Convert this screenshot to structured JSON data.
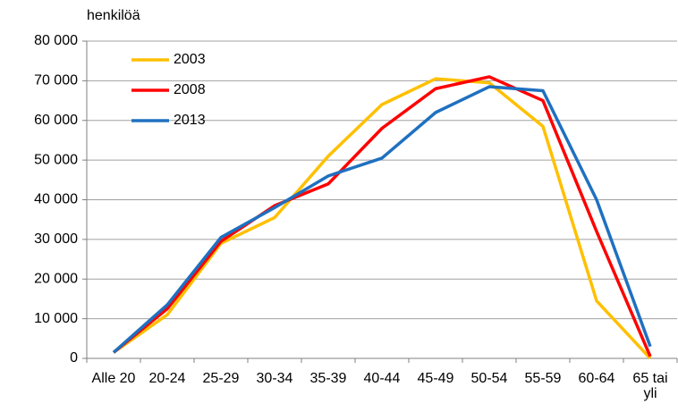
{
  "chart_data": {
    "type": "line",
    "y_axis_label": "henkilöä",
    "categories": [
      "Alle 20",
      "20-24",
      "25-29",
      "30-34",
      "35-39",
      "40-44",
      "45-49",
      "50-54",
      "55-59",
      "60-64",
      "65 tai yli"
    ],
    "series": [
      {
        "name": "2003",
        "color": "#ffc000",
        "values": [
          1500,
          11000,
          29000,
          35500,
          51000,
          64000,
          70500,
          69500,
          58500,
          14500,
          0
        ]
      },
      {
        "name": "2008",
        "color": "#ff0000",
        "values": [
          1500,
          12500,
          29500,
          38500,
          44000,
          58000,
          68000,
          71000,
          65000,
          32000,
          500
        ]
      },
      {
        "name": "2013",
        "color": "#1f70c0",
        "values": [
          1500,
          13500,
          30500,
          38000,
          46000,
          50500,
          62000,
          68500,
          67500,
          40000,
          3000
        ]
      }
    ],
    "ylim": [
      0,
      80000
    ],
    "yticks": [
      {
        "value": 0,
        "label": "0"
      },
      {
        "value": 10000,
        "label": "10 000"
      },
      {
        "value": 20000,
        "label": "20 000"
      },
      {
        "value": 30000,
        "label": "30 000"
      },
      {
        "value": 40000,
        "label": "40 000"
      },
      {
        "value": 50000,
        "label": "50 000"
      },
      {
        "value": 60000,
        "label": "60 000"
      },
      {
        "value": 70000,
        "label": "70 000"
      },
      {
        "value": 80000,
        "label": "80 000"
      }
    ],
    "grid": true,
    "legend": "top-left"
  }
}
